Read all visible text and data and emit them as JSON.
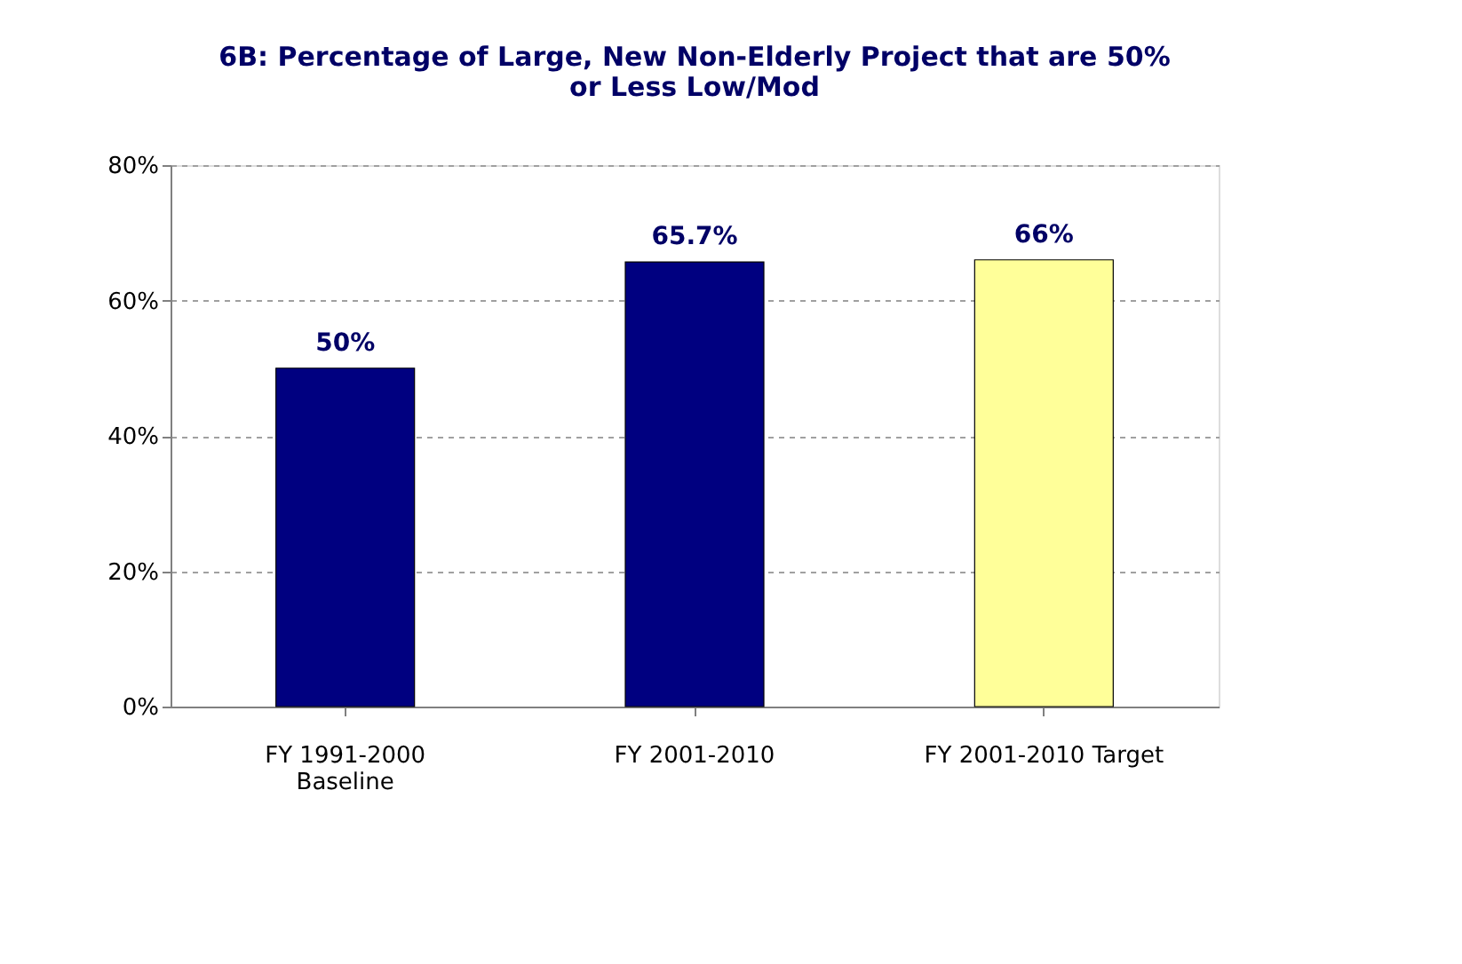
{
  "chart_data": {
    "type": "bar",
    "title": "6B: Percentage of Large, New Non-Elderly Project that are 50% or Less Low/Mod",
    "categories": [
      "FY 1991-2000\nBaseline",
      "FY 2001-2010",
      "FY 2001-2010 Target"
    ],
    "values": [
      50,
      65.7,
      66
    ],
    "colors": [
      "#000080",
      "#000080",
      "#ffff99"
    ],
    "value_labels": [
      "50%",
      "65.7%",
      "66%"
    ],
    "ylim": [
      0,
      80
    ],
    "yticks": [
      {
        "value": 0,
        "label": "0%"
      },
      {
        "value": 20,
        "label": "20%"
      },
      {
        "value": 40,
        "label": "40%"
      },
      {
        "value": 60,
        "label": "60%"
      },
      {
        "value": 80,
        "label": "80%"
      }
    ],
    "grid": "y"
  }
}
